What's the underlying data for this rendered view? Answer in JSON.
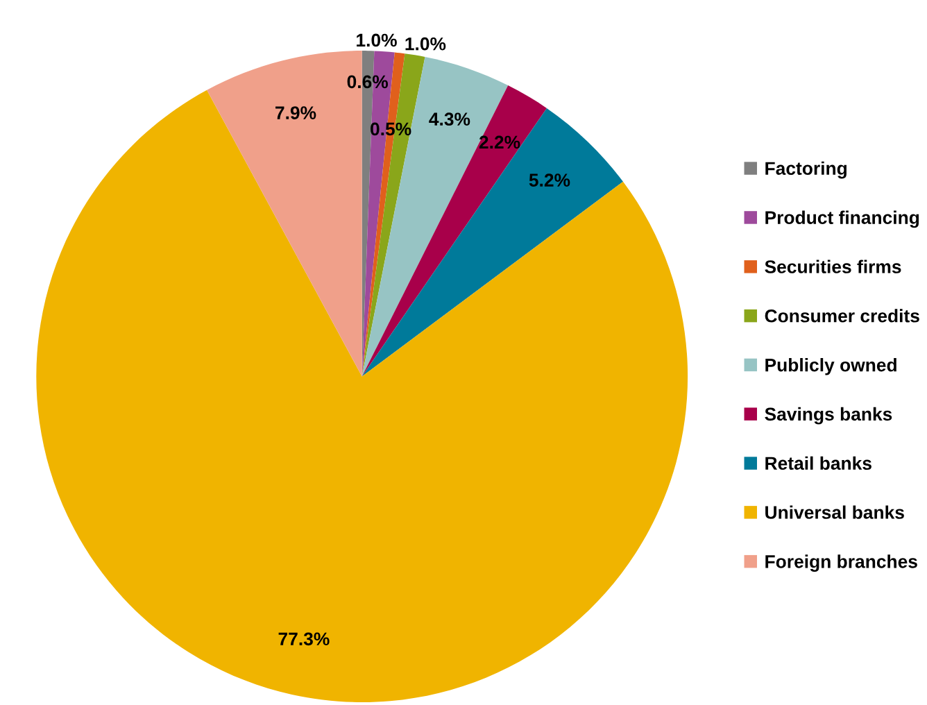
{
  "chart_data": {
    "type": "pie",
    "categories": [
      "Factoring",
      "Product financing",
      "Securities firms",
      "Consumer credits",
      "Publicly owned",
      "Savings banks",
      "Retail banks",
      "Universal banks",
      "Foreign branches"
    ],
    "values": [
      0.6,
      1.0,
      0.5,
      1.0,
      4.3,
      2.2,
      5.2,
      77.3,
      7.9
    ],
    "colors": [
      "#7f7f7f",
      "#9e4a9c",
      "#e0601c",
      "#8aa61a",
      "#97c4c4",
      "#a8004a",
      "#007a9a",
      "#f0b400",
      "#f0a08a"
    ],
    "value_labels": [
      "0.6%",
      "1.0%",
      "0.5%",
      "1.0%",
      "4.3%",
      "2.2%",
      "5.2%",
      "77.3%",
      "7.9%"
    ],
    "legend": "right"
  }
}
